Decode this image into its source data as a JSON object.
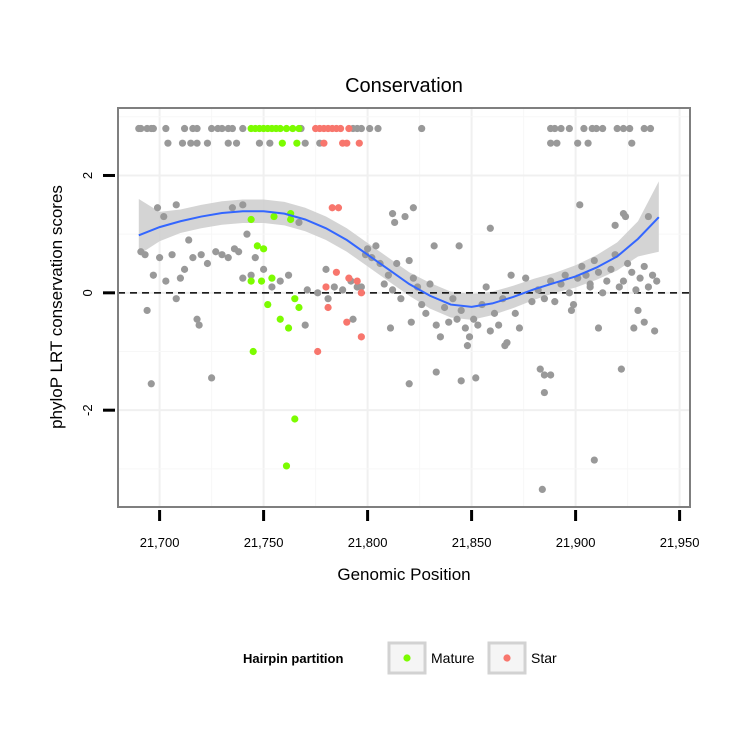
{
  "chart_data": {
    "type": "scatter",
    "title": "Conservation",
    "xlabel": "Genomic Position",
    "ylabel": "phyloP LRT conservation scores",
    "xlim": [
      21680,
      21955
    ],
    "ylim": [
      -3.65,
      3.15
    ],
    "x_ticks": [
      21700,
      21750,
      21800,
      21850,
      21900,
      21950
    ],
    "x_tick_labels": [
      "21,700",
      "21,750",
      "21,800",
      "21,850",
      "21,900",
      "21,950"
    ],
    "y_ticks": [
      -2,
      0,
      2
    ],
    "y_tick_labels": [
      "-2",
      "0",
      "2"
    ],
    "reference_line": {
      "y": 0,
      "style": "dashed"
    },
    "legend": {
      "title": "Hairpin partition",
      "position": "bottom",
      "entries": [
        {
          "label": "Mature",
          "color": "#7cfc00"
        },
        {
          "label": "Star",
          "color": "#f8766d"
        }
      ]
    },
    "colors": {
      "other": "#999999",
      "mature": "#7cfc00",
      "star": "#f8766d",
      "smooth": "#3366ff",
      "band": "#cccccc"
    },
    "series": [
      {
        "name": "Other",
        "color": "#999999",
        "points": [
          [
            21690,
            2.8
          ],
          [
            21691,
            2.8
          ],
          [
            21694,
            2.8
          ],
          [
            21696,
            2.8
          ],
          [
            21697,
            2.8
          ],
          [
            21703,
            2.8
          ],
          [
            21712,
            2.8
          ],
          [
            21716,
            2.8
          ],
          [
            21718,
            2.8
          ],
          [
            21725,
            2.8
          ],
          [
            21728,
            2.8
          ],
          [
            21730,
            2.8
          ],
          [
            21733,
            2.8
          ],
          [
            21735,
            2.8
          ],
          [
            21740,
            2.8
          ],
          [
            21768,
            2.8
          ],
          [
            21793,
            2.8
          ],
          [
            21795,
            2.8
          ],
          [
            21797,
            2.8
          ],
          [
            21801,
            2.8
          ],
          [
            21805,
            2.8
          ],
          [
            21826,
            2.8
          ],
          [
            21888,
            2.8
          ],
          [
            21890,
            2.8
          ],
          [
            21893,
            2.8
          ],
          [
            21897,
            2.8
          ],
          [
            21904,
            2.8
          ],
          [
            21908,
            2.8
          ],
          [
            21910,
            2.8
          ],
          [
            21913,
            2.8
          ],
          [
            21920,
            2.8
          ],
          [
            21923,
            2.8
          ],
          [
            21926,
            2.8
          ],
          [
            21933,
            2.8
          ],
          [
            21936,
            2.8
          ],
          [
            21704,
            2.55
          ],
          [
            21711,
            2.55
          ],
          [
            21715,
            2.55
          ],
          [
            21718,
            2.55
          ],
          [
            21723,
            2.55
          ],
          [
            21733,
            2.55
          ],
          [
            21737,
            2.55
          ],
          [
            21748,
            2.55
          ],
          [
            21753,
            2.55
          ],
          [
            21770,
            2.55
          ],
          [
            21777,
            2.55
          ],
          [
            21888,
            2.55
          ],
          [
            21891,
            2.55
          ],
          [
            21901,
            2.55
          ],
          [
            21906,
            2.55
          ],
          [
            21927,
            2.55
          ],
          [
            21691,
            0.7
          ],
          [
            21693,
            0.65
          ],
          [
            21697,
            0.3
          ],
          [
            21699,
            1.45
          ],
          [
            21700,
            0.6
          ],
          [
            21702,
            1.3
          ],
          [
            21703,
            0.2
          ],
          [
            21706,
            0.65
          ],
          [
            21708,
            1.5
          ],
          [
            21710,
            0.25
          ],
          [
            21712,
            0.4
          ],
          [
            21714,
            0.9
          ],
          [
            21716,
            0.6
          ],
          [
            21718,
            -0.45
          ],
          [
            21720,
            0.65
          ],
          [
            21723,
            0.5
          ],
          [
            21727,
            0.7
          ],
          [
            21730,
            0.65
          ],
          [
            21733,
            0.6
          ],
          [
            21736,
            0.75
          ],
          [
            21738,
            0.7
          ],
          [
            21740,
            0.25
          ],
          [
            21744,
            0.3
          ],
          [
            21746,
            0.6
          ],
          [
            21750,
            0.4
          ],
          [
            21754,
            0.1
          ],
          [
            21758,
            0.2
          ],
          [
            21762,
            0.3
          ],
          [
            21767,
            1.2
          ],
          [
            21771,
            0.05
          ],
          [
            21776,
            0.0
          ],
          [
            21780,
            0.4
          ],
          [
            21784,
            0.1
          ],
          [
            21788,
            0.05
          ],
          [
            21792,
            0.2
          ],
          [
            21795,
            0.1
          ],
          [
            21797,
            0.1
          ],
          [
            21799,
            0.65
          ],
          [
            21802,
            0.6
          ],
          [
            21804,
            0.8
          ],
          [
            21806,
            0.5
          ],
          [
            21808,
            0.15
          ],
          [
            21810,
            0.3
          ],
          [
            21812,
            0.05
          ],
          [
            21814,
            0.5
          ],
          [
            21816,
            -0.1
          ],
          [
            21818,
            1.3
          ],
          [
            21820,
            0.55
          ],
          [
            21822,
            0.25
          ],
          [
            21824,
            0.1
          ],
          [
            21826,
            -0.2
          ],
          [
            21828,
            -0.35
          ],
          [
            21830,
            0.15
          ],
          [
            21833,
            -0.55
          ],
          [
            21835,
            -0.75
          ],
          [
            21837,
            -0.25
          ],
          [
            21839,
            -0.5
          ],
          [
            21841,
            -0.1
          ],
          [
            21843,
            -0.45
          ],
          [
            21845,
            -0.3
          ],
          [
            21847,
            -0.6
          ],
          [
            21849,
            -0.75
          ],
          [
            21851,
            -0.45
          ],
          [
            21853,
            -0.55
          ],
          [
            21855,
            -0.2
          ],
          [
            21857,
            0.1
          ],
          [
            21859,
            -0.65
          ],
          [
            21861,
            -0.35
          ],
          [
            21863,
            -0.55
          ],
          [
            21865,
            -0.1
          ],
          [
            21867,
            -0.85
          ],
          [
            21869,
            0.3
          ],
          [
            21871,
            -0.35
          ],
          [
            21873,
            -0.6
          ],
          [
            21876,
            0.25
          ],
          [
            21879,
            -0.15
          ],
          [
            21882,
            0.05
          ],
          [
            21885,
            -0.1
          ],
          [
            21888,
            0.2
          ],
          [
            21890,
            -0.15
          ],
          [
            21893,
            0.15
          ],
          [
            21895,
            0.3
          ],
          [
            21897,
            0.0
          ],
          [
            21899,
            -0.2
          ],
          [
            21901,
            0.25
          ],
          [
            21903,
            0.45
          ],
          [
            21905,
            0.3
          ],
          [
            21907,
            0.1
          ],
          [
            21909,
            0.55
          ],
          [
            21911,
            0.35
          ],
          [
            21913,
            0.0
          ],
          [
            21915,
            0.2
          ],
          [
            21917,
            0.4
          ],
          [
            21919,
            0.65
          ],
          [
            21921,
            0.1
          ],
          [
            21923,
            0.2
          ],
          [
            21925,
            0.5
          ],
          [
            21927,
            0.35
          ],
          [
            21929,
            0.05
          ],
          [
            21931,
            0.25
          ],
          [
            21933,
            0.45
          ],
          [
            21935,
            0.1
          ],
          [
            21937,
            0.3
          ],
          [
            21939,
            0.2
          ],
          [
            21694,
            -0.3
          ],
          [
            21708,
            -0.1
          ],
          [
            21719,
            -0.55
          ],
          [
            21770,
            -0.55
          ],
          [
            21781,
            -0.1
          ],
          [
            21793,
            -0.45
          ],
          [
            21811,
            -0.6
          ],
          [
            21821,
            -0.5
          ],
          [
            21844,
            0.8
          ],
          [
            21859,
            1.1
          ],
          [
            21822,
            1.45
          ],
          [
            21812,
            1.35
          ],
          [
            21813,
            1.2
          ],
          [
            21800,
            0.75
          ],
          [
            21832,
            0.8
          ],
          [
            21935,
            1.3
          ],
          [
            21907,
            0.15
          ],
          [
            21923,
            1.35
          ],
          [
            21924,
            1.3
          ],
          [
            21919,
            1.15
          ],
          [
            21902,
            1.5
          ],
          [
            21928,
            -0.6
          ],
          [
            21911,
            -0.6
          ],
          [
            21938,
            -0.65
          ],
          [
            21933,
            -0.5
          ],
          [
            21930,
            -0.3
          ],
          [
            21898,
            -0.3
          ],
          [
            21696,
            -1.55
          ],
          [
            21725,
            -1.45
          ],
          [
            21742,
            1.0
          ],
          [
            21740,
            1.5
          ],
          [
            21735,
            1.45
          ],
          [
            21820,
            -1.55
          ],
          [
            21833,
            -1.35
          ],
          [
            21845,
            -1.5
          ],
          [
            21852,
            -1.45
          ],
          [
            21883,
            -1.3
          ],
          [
            21885,
            -1.4
          ],
          [
            21888,
            -1.4
          ],
          [
            21885,
            -1.7
          ],
          [
            21909,
            -2.85
          ],
          [
            21884,
            -3.35
          ],
          [
            21922,
            -1.3
          ],
          [
            21866,
            -0.9
          ],
          [
            21848,
            -0.9
          ]
        ]
      },
      {
        "name": "Mature",
        "color": "#7cfc00",
        "points": [
          [
            21744,
            2.8
          ],
          [
            21746,
            2.8
          ],
          [
            21748,
            2.8
          ],
          [
            21750,
            2.8
          ],
          [
            21752,
            2.8
          ],
          [
            21754,
            2.8
          ],
          [
            21756,
            2.8
          ],
          [
            21758,
            2.8
          ],
          [
            21761,
            2.8
          ],
          [
            21764,
            2.8
          ],
          [
            21767,
            2.8
          ],
          [
            21759,
            2.55
          ],
          [
            21766,
            2.55
          ],
          [
            21744,
            1.25
          ],
          [
            21747,
            0.8
          ],
          [
            21750,
            0.75
          ],
          [
            21755,
            1.3
          ],
          [
            21763,
            1.35
          ],
          [
            21763,
            1.25
          ],
          [
            21744,
            0.2
          ],
          [
            21749,
            0.2
          ],
          [
            21754,
            0.25
          ],
          [
            21765,
            -0.1
          ],
          [
            21752,
            -0.2
          ],
          [
            21767,
            -0.25
          ],
          [
            21758,
            -0.45
          ],
          [
            21762,
            -0.6
          ],
          [
            21745,
            -1.0
          ],
          [
            21765,
            -2.15
          ],
          [
            21761,
            -2.95
          ]
        ]
      },
      {
        "name": "Star",
        "color": "#f8766d",
        "points": [
          [
            21775,
            2.8
          ],
          [
            21777,
            2.8
          ],
          [
            21779,
            2.8
          ],
          [
            21781,
            2.8
          ],
          [
            21783,
            2.8
          ],
          [
            21785,
            2.8
          ],
          [
            21787,
            2.8
          ],
          [
            21791,
            2.8
          ],
          [
            21779,
            2.55
          ],
          [
            21788,
            2.55
          ],
          [
            21790,
            2.55
          ],
          [
            21796,
            2.55
          ],
          [
            21783,
            1.45
          ],
          [
            21786,
            1.45
          ],
          [
            21785,
            0.35
          ],
          [
            21791,
            0.25
          ],
          [
            21795,
            0.2
          ],
          [
            21780,
            0.1
          ],
          [
            21797,
            0.0
          ],
          [
            21781,
            -0.25
          ],
          [
            21790,
            -0.5
          ],
          [
            21797,
            -0.75
          ],
          [
            21776,
            -1.0
          ]
        ]
      }
    ],
    "smooth_line": {
      "x": [
        21690,
        21700,
        21710,
        21720,
        21730,
        21740,
        21750,
        21760,
        21770,
        21780,
        21790,
        21800,
        21810,
        21820,
        21830,
        21840,
        21850,
        21860,
        21870,
        21880,
        21890,
        21900,
        21910,
        21920,
        21930,
        21940
      ],
      "y": [
        0.98,
        1.12,
        1.22,
        1.3,
        1.36,
        1.39,
        1.39,
        1.35,
        1.25,
        1.1,
        0.9,
        0.65,
        0.4,
        0.15,
        -0.05,
        -0.2,
        -0.24,
        -0.18,
        -0.07,
        0.06,
        0.17,
        0.28,
        0.43,
        0.62,
        0.92,
        1.29
      ],
      "lower": [
        0.65,
        0.88,
        1.02,
        1.1,
        1.16,
        1.19,
        1.19,
        1.15,
        1.05,
        0.9,
        0.7,
        0.45,
        0.2,
        -0.05,
        -0.27,
        -0.42,
        -0.46,
        -0.38,
        -0.26,
        -0.12,
        0.0,
        0.09,
        0.22,
        0.38,
        0.62,
        0.7
      ],
      "upper": [
        1.6,
        1.38,
        1.42,
        1.5,
        1.56,
        1.59,
        1.59,
        1.55,
        1.45,
        1.3,
        1.1,
        0.85,
        0.6,
        0.35,
        0.17,
        0.02,
        -0.02,
        0.02,
        0.12,
        0.24,
        0.34,
        0.47,
        0.64,
        0.86,
        1.22,
        1.9
      ]
    }
  }
}
